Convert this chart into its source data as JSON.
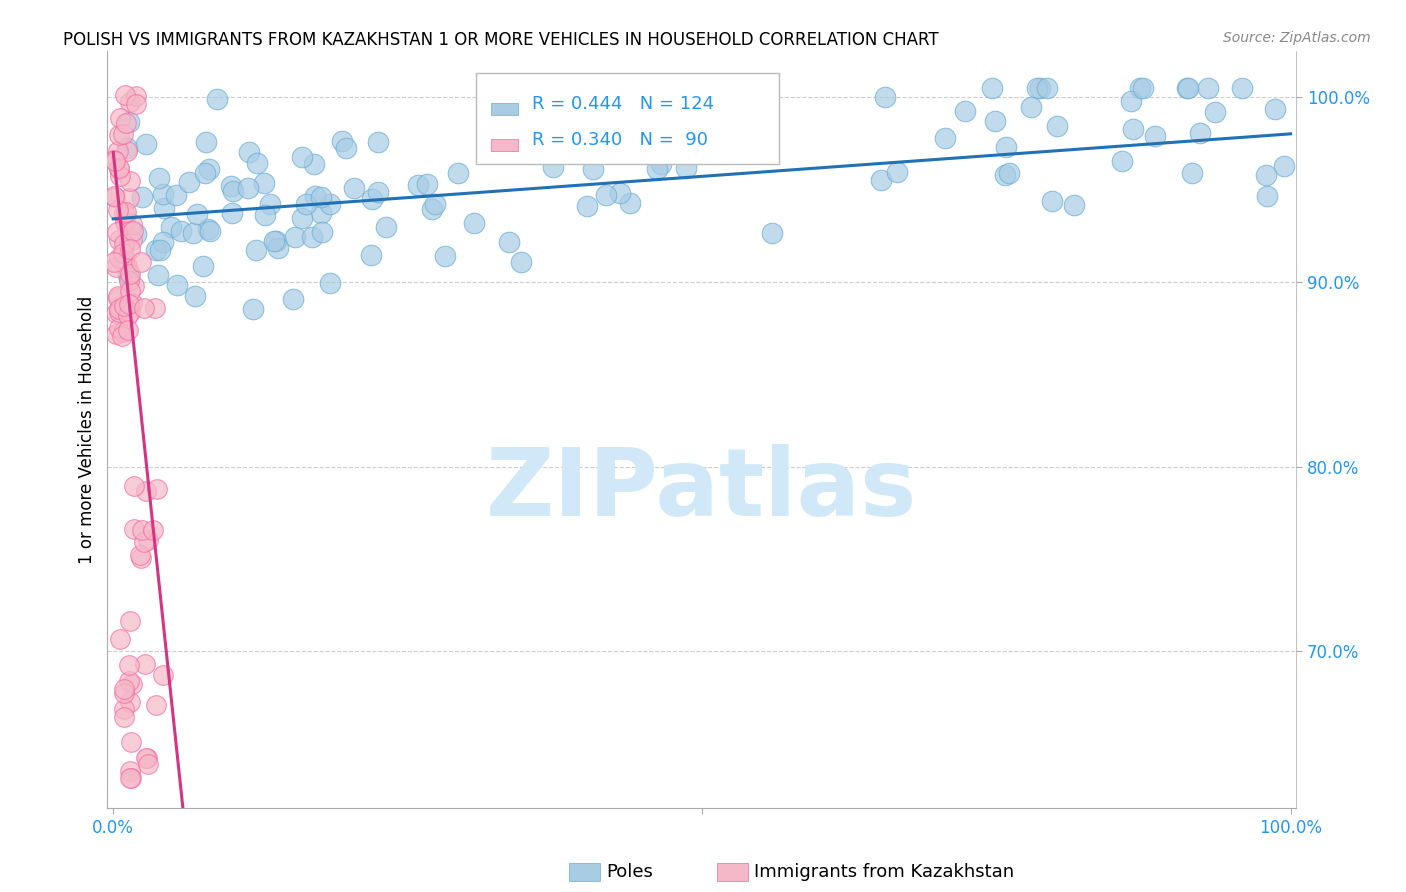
{
  "title": "POLISH VS IMMIGRANTS FROM KAZAKHSTAN 1 OR MORE VEHICLES IN HOUSEHOLD CORRELATION CHART",
  "source_text": "Source: ZipAtlas.com",
  "ylabel": "1 or more Vehicles in Household",
  "xlim": [
    -0.005,
    1.005
  ],
  "ylim": [
    0.615,
    1.025
  ],
  "x_tick_positions": [
    0.0,
    0.5,
    1.0
  ],
  "x_tick_labels": [
    "0.0%",
    "",
    "100.0%"
  ],
  "y_tick_positions": [
    0.7,
    0.8,
    0.9,
    1.0
  ],
  "y_tick_labels": [
    "70.0%",
    "80.0%",
    "90.0%",
    "100.0%"
  ],
  "blue_R": 0.444,
  "blue_N": 124,
  "pink_R": 0.34,
  "pink_N": 90,
  "blue_color": "#a8cce4",
  "blue_edge_color": "#6baed6",
  "pink_color": "#f4b8c8",
  "pink_edge_color": "#f768a1",
  "blue_line_color": "#2171b5",
  "pink_line_color": "#d63383",
  "legend_label_blue": "Poles",
  "legend_label_pink": "Immigrants from Kazakhstan",
  "watermark": "ZIPatlas",
  "watermark_color": "#d0e8f8",
  "grid_color": "#cccccc",
  "axis_color": "#aaaaaa",
  "tick_color": "#2196F3",
  "title_fontsize": 12,
  "source_fontsize": 10,
  "tick_fontsize": 12,
  "ylabel_fontsize": 12,
  "legend_fontsize": 13
}
